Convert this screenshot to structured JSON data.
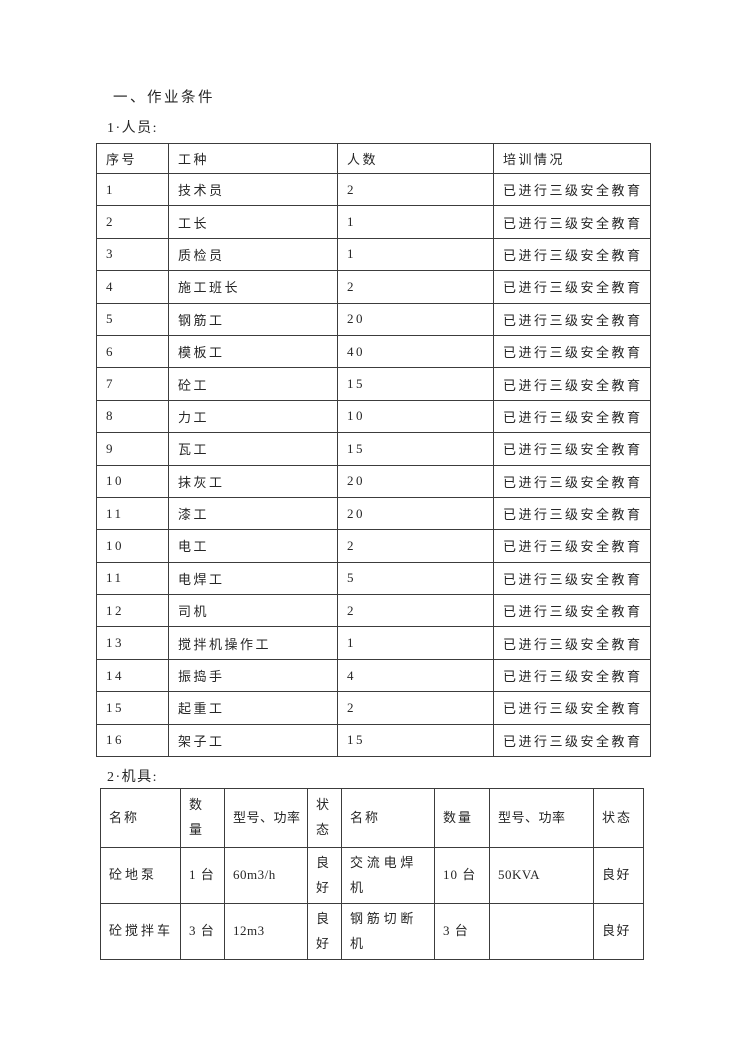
{
  "document": {
    "section_title": "一、作业条件",
    "personnel_label": "1·人员:",
    "equipment_label": "2·机具:"
  },
  "personnel_table": {
    "headers": [
      "序号",
      "工种",
      "人数",
      "培训情况"
    ],
    "rows": [
      [
        "1",
        "技术员",
        "2",
        "已进行三级安全教育"
      ],
      [
        "2",
        "工长",
        "1",
        "已进行三级安全教育"
      ],
      [
        "3",
        "质检员",
        "1",
        "已进行三级安全教育"
      ],
      [
        "4",
        "施工班长",
        "2",
        "已进行三级安全教育"
      ],
      [
        "5",
        "钢筋工",
        "20",
        "已进行三级安全教育"
      ],
      [
        "6",
        "模板工",
        "40",
        "已进行三级安全教育"
      ],
      [
        "7",
        "砼工",
        "15",
        "已进行三级安全教育"
      ],
      [
        "8",
        "力工",
        "10",
        "已进行三级安全教育"
      ],
      [
        "9",
        "瓦工",
        "15",
        "已进行三级安全教育"
      ],
      [
        "10",
        "抹灰工",
        "20",
        "已进行三级安全教育"
      ],
      [
        "11",
        "漆工",
        "20",
        "已进行三级安全教育"
      ],
      [
        "10",
        "电工",
        "2",
        "已进行三级安全教育"
      ],
      [
        "11",
        "电焊工",
        "5",
        "已进行三级安全教育"
      ],
      [
        "12",
        "司机",
        "2",
        "已进行三级安全教育"
      ],
      [
        "13",
        "搅拌机操作工",
        "1",
        "已进行三级安全教育"
      ],
      [
        "14",
        "振捣手",
        "4",
        "已进行三级安全教育"
      ],
      [
        "15",
        "起重工",
        "2",
        "已进行三级安全教育"
      ],
      [
        "16",
        "架子工",
        "15",
        "已进行三级安全教育"
      ]
    ]
  },
  "equipment_table": {
    "headers": [
      "名称",
      "数量",
      "型号、功率",
      "状态",
      "名称",
      "数量",
      "型号、功率",
      "状态"
    ],
    "rows": [
      [
        "砼地泵",
        "1 台",
        "60m3/h",
        "良好",
        "交流电焊机",
        "10 台",
        "50KVA",
        "良好"
      ],
      [
        "砼搅拌车",
        "3 台",
        "12m3",
        "良好",
        "钢筋切断机",
        "3 台",
        "",
        "良好"
      ]
    ]
  }
}
